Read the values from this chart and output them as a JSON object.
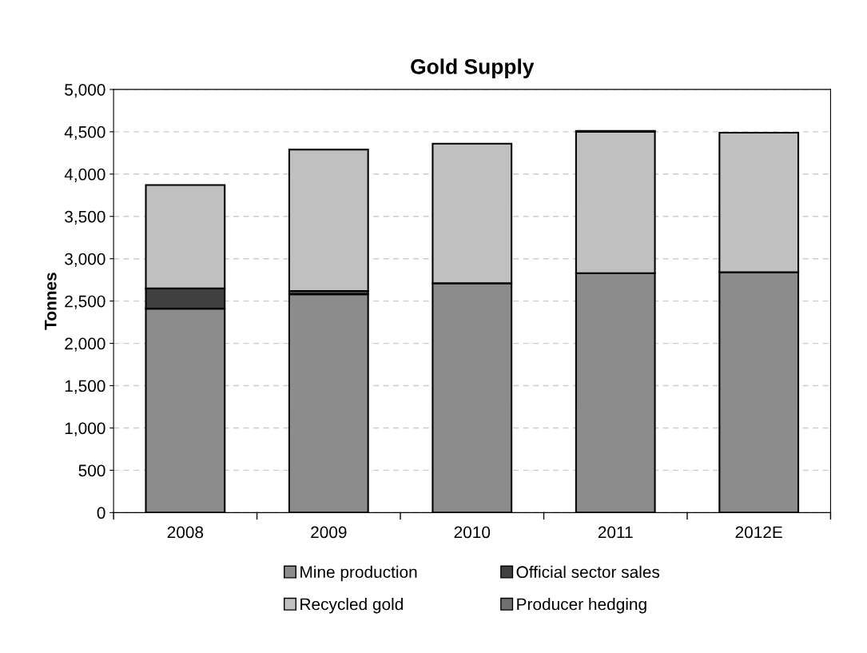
{
  "chart_data": {
    "type": "bar",
    "title": "Gold Supply",
    "ylabel": "Tonnes",
    "stacked": true,
    "categories": [
      "2008",
      "2009",
      "2010",
      "2011",
      "2012E"
    ],
    "series": [
      {
        "name": "Mine production",
        "color": "#8c8c8c",
        "values": [
          2410,
          2580,
          2710,
          2830,
          2840
        ]
      },
      {
        "name": "Official sector sales",
        "color": "#404040",
        "values": [
          240,
          40,
          null,
          null,
          null
        ]
      },
      {
        "name": "Recycled gold",
        "color": "#c0c0c0",
        "values": [
          1220,
          1670,
          1650,
          1670,
          1650
        ]
      },
      {
        "name": "Producer hedging",
        "color": "#707070",
        "values": [
          null,
          null,
          null,
          10,
          null
        ]
      }
    ],
    "ylim": [
      0,
      5000
    ],
    "yticks": [
      0,
      500,
      {
        "value": 1000,
        "label": "1,000"
      },
      {
        "value": 1500,
        "label": "1,500"
      },
      {
        "value": 2000,
        "label": "2,000"
      },
      {
        "value": 2500,
        "label": "2,500"
      },
      {
        "value": 3000,
        "label": "3,000"
      },
      {
        "value": 3500,
        "label": "3,500"
      },
      {
        "value": 4000,
        "label": "4,000"
      },
      {
        "value": 4500,
        "label": "4,500"
      },
      {
        "value": 5000,
        "label": "5,000"
      }
    ],
    "grid": "y",
    "legend": "bottom"
  }
}
